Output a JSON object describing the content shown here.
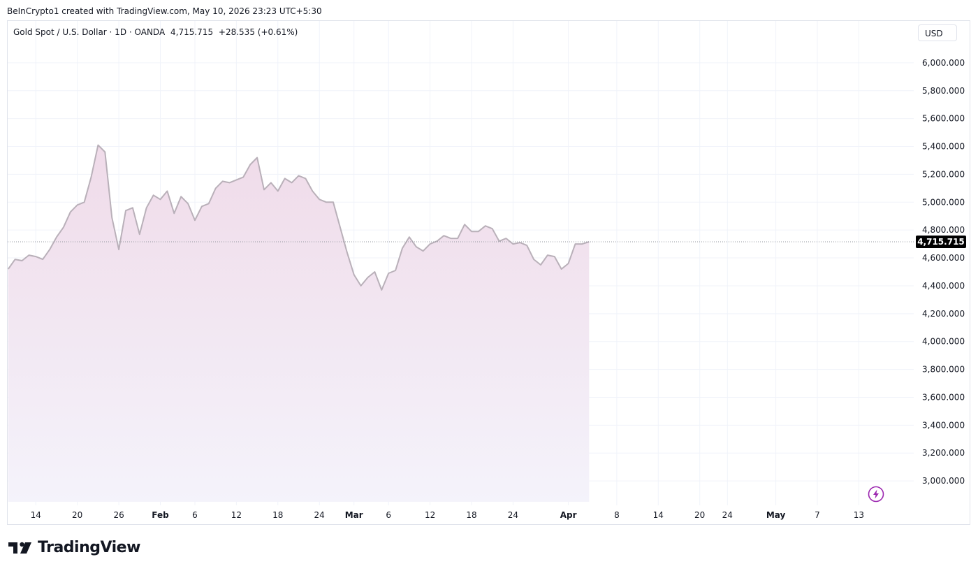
{
  "header": {
    "attribution": "BeInCrypto1 created with TradingView.com, May 10, 2026 23:23 UTC+5:30"
  },
  "legend": {
    "symbol": "Gold Spot / U.S. Dollar · 1D · OANDA",
    "last": "4,715.715",
    "change": "+28.535 (+0.61%)"
  },
  "currency_button": "USD",
  "price_tag": "4,715.715",
  "footer": {
    "brand": "TradingView"
  },
  "colors": {
    "line": "#b9b0b9",
    "fill_top": "#f0dbe9",
    "fill_bottom": "#f4f3fb",
    "grid": "#f0f3fa",
    "price_tag_bg": "#000000",
    "lightning": "#9c27b0"
  },
  "chart_data": {
    "type": "area",
    "title": "Gold Spot / U.S. Dollar · 1D · OANDA",
    "xlabel": "",
    "ylabel": "",
    "ylim": [
      2850,
      6150
    ],
    "y_ticks": [
      "6,000.000",
      "5,800.000",
      "5,600.000",
      "5,400.000",
      "5,200.000",
      "5,000.000",
      "4,800.000",
      "4,600.000",
      "4,400.000",
      "4,200.000",
      "4,000.000",
      "3,800.000",
      "3,600.000",
      "3,400.000",
      "3,200.000",
      "3,000.000"
    ],
    "x_ticks": [
      {
        "label": "14",
        "date": "2026-01-14"
      },
      {
        "label": "20",
        "date": "2026-01-20"
      },
      {
        "label": "26",
        "date": "2026-01-26"
      },
      {
        "label": "Feb",
        "date": "2026-02-01",
        "bold": true
      },
      {
        "label": "6",
        "date": "2026-02-06"
      },
      {
        "label": "12",
        "date": "2026-02-12"
      },
      {
        "label": "18",
        "date": "2026-02-18"
      },
      {
        "label": "24",
        "date": "2026-02-24"
      },
      {
        "label": "Mar",
        "date": "2026-03-01",
        "bold": true
      },
      {
        "label": "6",
        "date": "2026-03-06"
      },
      {
        "label": "12",
        "date": "2026-03-12"
      },
      {
        "label": "18",
        "date": "2026-03-18"
      },
      {
        "label": "24",
        "date": "2026-03-24"
      },
      {
        "label": "Apr",
        "date": "2026-04-01",
        "bold": true
      },
      {
        "label": "8",
        "date": "2026-04-08"
      },
      {
        "label": "14",
        "date": "2026-04-14"
      },
      {
        "label": "20",
        "date": "2026-04-20"
      },
      {
        "label": "24",
        "date": "2026-04-24"
      },
      {
        "label": "May",
        "date": "2026-05-01",
        "bold": true
      },
      {
        "label": "7",
        "date": "2026-05-07"
      },
      {
        "label": "13",
        "date": "2026-05-13"
      }
    ],
    "last_price": 4715.715,
    "series": [
      {
        "values": [
          [
            "2026-01-10",
            4520
          ],
          [
            "2026-01-11",
            4590
          ],
          [
            "2026-01-12",
            4580
          ],
          [
            "2026-01-13",
            4620
          ],
          [
            "2026-01-14",
            4610
          ],
          [
            "2026-01-15",
            4590
          ],
          [
            "2026-01-16",
            4660
          ],
          [
            "2026-01-17",
            4750
          ],
          [
            "2026-01-18",
            4820
          ],
          [
            "2026-01-19",
            4930
          ],
          [
            "2026-01-20",
            4980
          ],
          [
            "2026-01-21",
            5000
          ],
          [
            "2026-01-22",
            5180
          ],
          [
            "2026-01-23",
            5410
          ],
          [
            "2026-01-24",
            5360
          ],
          [
            "2026-01-25",
            4890
          ],
          [
            "2026-01-26",
            4660
          ],
          [
            "2026-01-27",
            4940
          ],
          [
            "2026-01-28",
            4960
          ],
          [
            "2026-01-29",
            4770
          ],
          [
            "2026-01-30",
            4960
          ],
          [
            "2026-01-31",
            5050
          ],
          [
            "2026-02-01",
            5020
          ],
          [
            "2026-02-02",
            5080
          ],
          [
            "2026-02-03",
            4920
          ],
          [
            "2026-02-04",
            5040
          ],
          [
            "2026-02-05",
            4990
          ],
          [
            "2026-02-06",
            4870
          ],
          [
            "2026-02-07",
            4970
          ],
          [
            "2026-02-08",
            4990
          ],
          [
            "2026-02-09",
            5100
          ],
          [
            "2026-02-10",
            5150
          ],
          [
            "2026-02-11",
            5140
          ],
          [
            "2026-02-12",
            5160
          ],
          [
            "2026-02-13",
            5180
          ],
          [
            "2026-02-14",
            5270
          ],
          [
            "2026-02-15",
            5320
          ],
          [
            "2026-02-16",
            5090
          ],
          [
            "2026-02-17",
            5140
          ],
          [
            "2026-02-18",
            5080
          ],
          [
            "2026-02-19",
            5170
          ],
          [
            "2026-02-20",
            5140
          ],
          [
            "2026-02-21",
            5190
          ],
          [
            "2026-02-22",
            5170
          ],
          [
            "2026-02-23",
            5080
          ],
          [
            "2026-02-24",
            5020
          ],
          [
            "2026-02-25",
            5000
          ],
          [
            "2026-02-26",
            5000
          ],
          [
            "2026-02-27",
            4820
          ],
          [
            "2026-02-28",
            4640
          ],
          [
            "2026-03-01",
            4480
          ],
          [
            "2026-03-02",
            4400
          ],
          [
            "2026-03-03",
            4460
          ],
          [
            "2026-03-04",
            4500
          ],
          [
            "2026-03-05",
            4370
          ],
          [
            "2026-03-06",
            4490
          ],
          [
            "2026-03-07",
            4510
          ],
          [
            "2026-03-08",
            4670
          ],
          [
            "2026-03-09",
            4750
          ],
          [
            "2026-03-10",
            4680
          ],
          [
            "2026-03-11",
            4650
          ],
          [
            "2026-03-12",
            4700
          ],
          [
            "2026-03-13",
            4720
          ],
          [
            "2026-03-14",
            4760
          ],
          [
            "2026-03-15",
            4740
          ],
          [
            "2026-03-16",
            4740
          ],
          [
            "2026-03-17",
            4840
          ],
          [
            "2026-03-18",
            4790
          ],
          [
            "2026-03-19",
            4790
          ],
          [
            "2026-03-20",
            4830
          ],
          [
            "2026-03-21",
            4810
          ],
          [
            "2026-03-22",
            4720
          ],
          [
            "2026-03-23",
            4740
          ],
          [
            "2026-03-24",
            4700
          ],
          [
            "2026-03-25",
            4710
          ],
          [
            "2026-03-26",
            4690
          ],
          [
            "2026-03-27",
            4590
          ],
          [
            "2026-03-28",
            4550
          ],
          [
            "2026-03-29",
            4620
          ],
          [
            "2026-03-30",
            4610
          ],
          [
            "2026-03-31",
            4520
          ],
          [
            "2026-04-01",
            4560
          ],
          [
            "2026-04-02",
            4700
          ],
          [
            "2026-04-03",
            4700
          ],
          [
            "2026-04-04",
            4715.715
          ]
        ]
      }
    ]
  }
}
